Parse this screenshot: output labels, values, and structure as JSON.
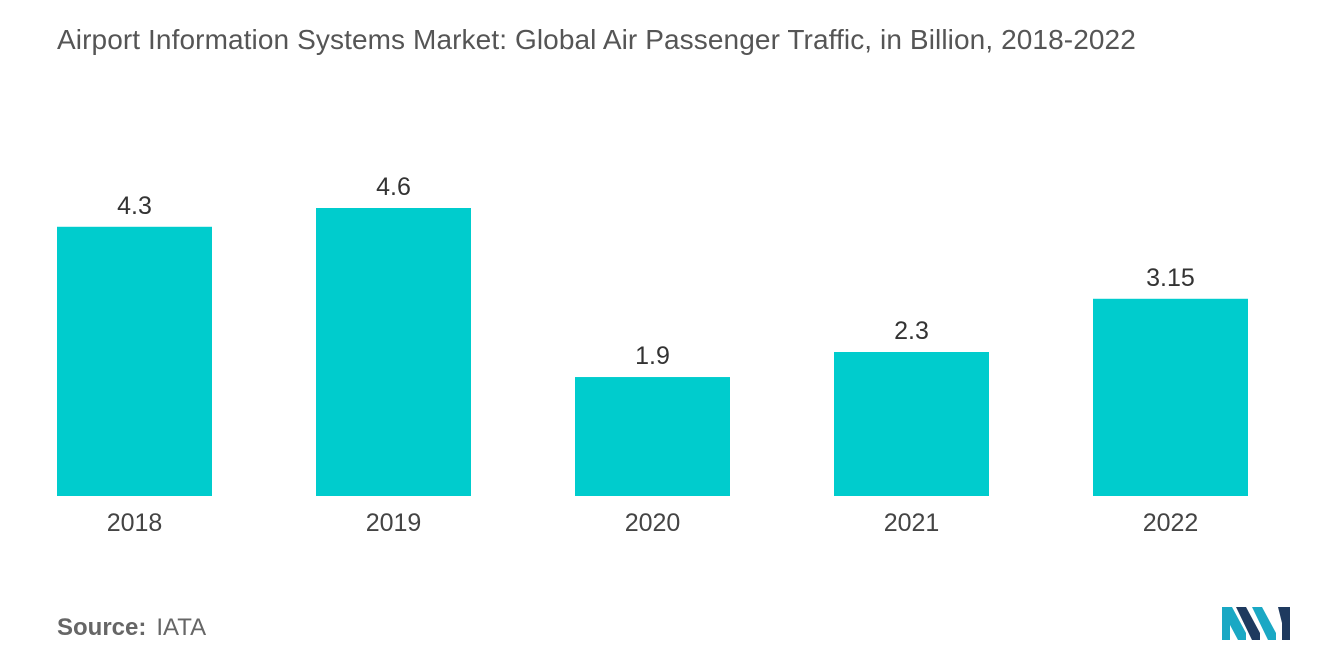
{
  "title": "Airport Information Systems Market: Global Air Passenger Traffic, in Billion, 2018-2022",
  "source": {
    "label": "Source:",
    "value": "IATA"
  },
  "logo": {
    "icon": "mordor-intelligence-logo-icon",
    "colors": [
      "#1aa8c4",
      "#1e3a5f"
    ]
  },
  "colors": {
    "bar": "#00cccd",
    "label_text": "#333333",
    "tick_text": "#444444"
  },
  "chart_data": {
    "type": "bar",
    "title": "Airport Information Systems Market: Global Air Passenger Traffic, in Billion, 2018-2022",
    "categories": [
      "2018",
      "2019",
      "2020",
      "2021",
      "2022"
    ],
    "values": [
      4.3,
      4.6,
      1.9,
      2.3,
      3.15
    ],
    "value_labels": [
      "4.3",
      "4.6",
      "1.9",
      "2.3",
      "3.15"
    ],
    "xlabel": "",
    "ylabel": "",
    "ylim": [
      0,
      4.6
    ],
    "grid": false,
    "legend": "none"
  }
}
